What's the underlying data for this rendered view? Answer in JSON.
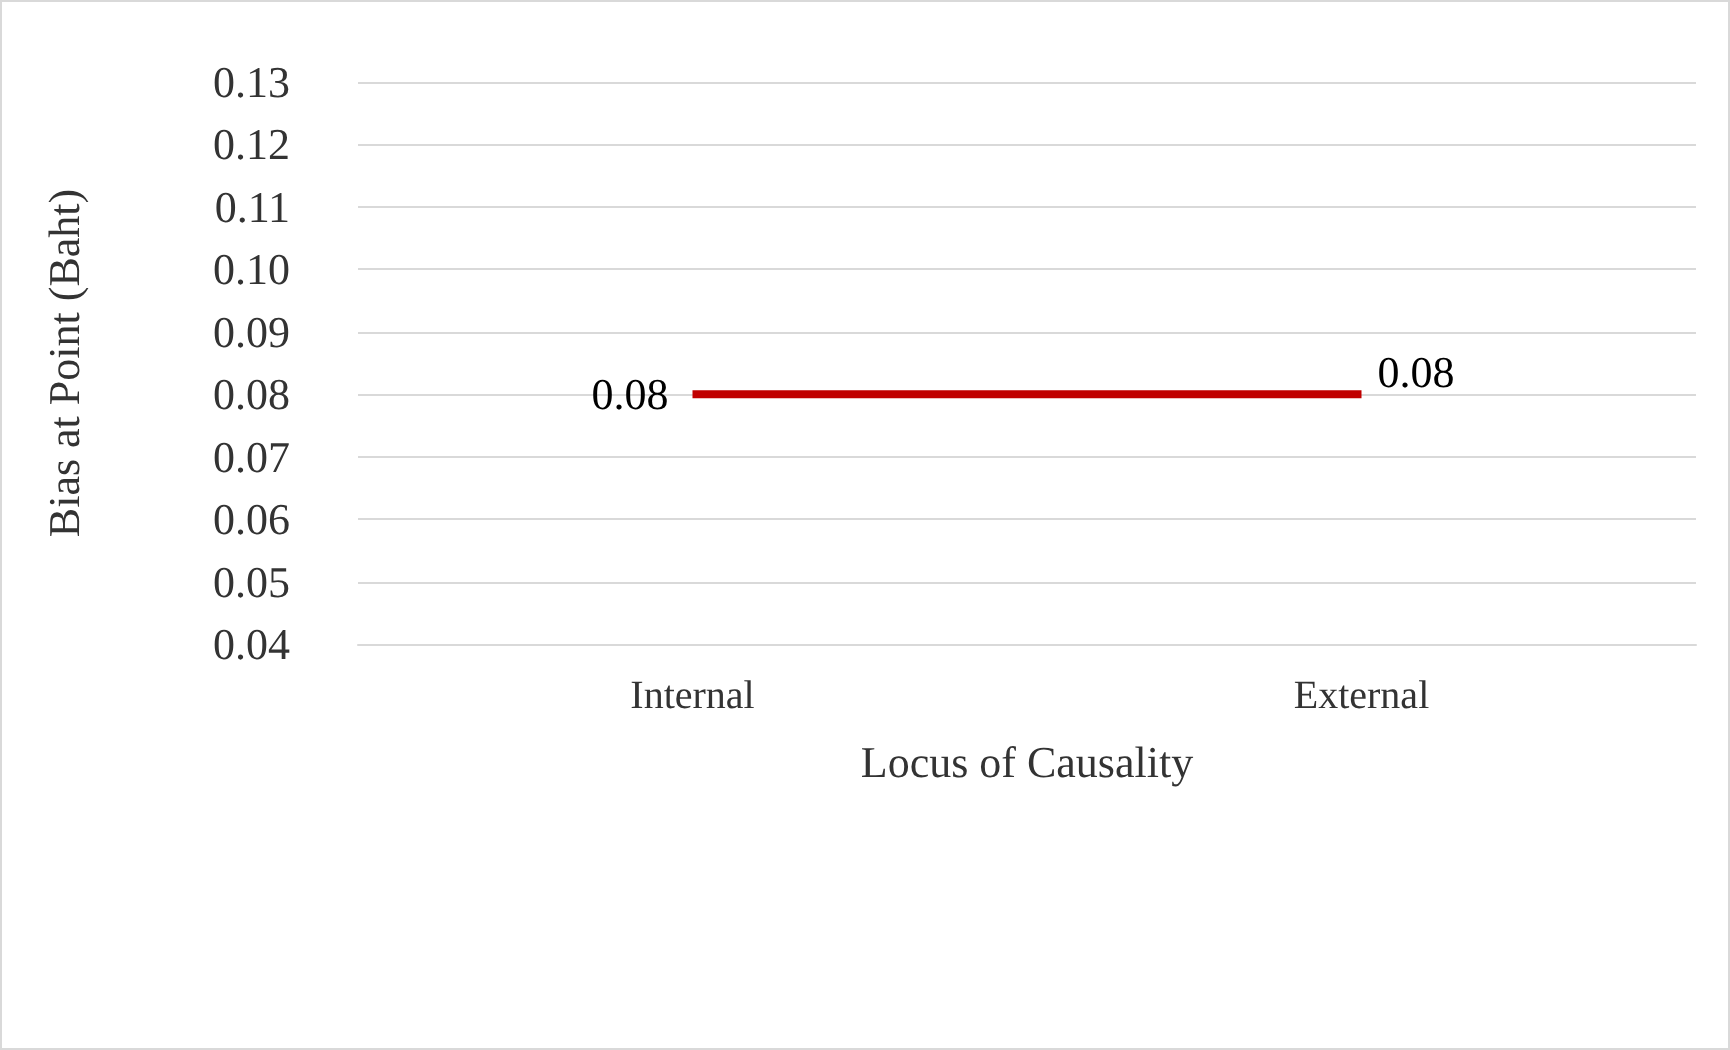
{
  "chart_data": {
    "type": "line",
    "xlabel": "Locus of Causality",
    "ylabel": "Bias at Point (Baht)",
    "categories": [
      "Internal",
      "External"
    ],
    "series": [
      {
        "color": "#c00000",
        "values": [
          0.08,
          0.08
        ]
      }
    ],
    "ylim": [
      0.04,
      0.13
    ],
    "yticks": [
      {
        "value": 0.04,
        "label": "0.04"
      },
      {
        "value": 0.05,
        "label": "0.05"
      },
      {
        "value": 0.06,
        "label": "0.06"
      },
      {
        "value": 0.07,
        "label": "0.07"
      },
      {
        "value": 0.08,
        "label": "0.08"
      },
      {
        "value": 0.09,
        "label": "0.09"
      },
      {
        "value": 0.1,
        "label": "0.10"
      },
      {
        "value": 0.11,
        "label": "0.11"
      },
      {
        "value": 0.12,
        "label": "0.12"
      },
      {
        "value": 0.13,
        "label": "0.13"
      }
    ],
    "grid": "y",
    "marker": "none",
    "line_style": "solid",
    "data_labels": true
  }
}
